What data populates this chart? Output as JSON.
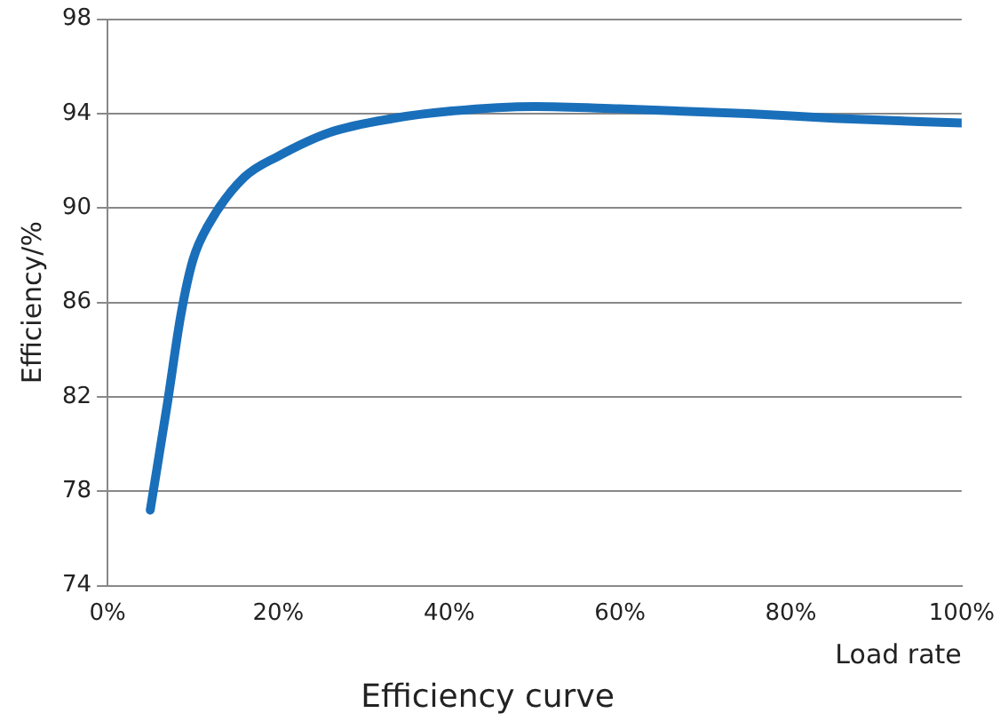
{
  "chart_data": {
    "type": "line",
    "title": "Efficiency curve",
    "xlabel": "Load rate",
    "ylabel": "Efficiency/%",
    "x": [
      5,
      7,
      8.6,
      10,
      12,
      16,
      20,
      26,
      33.5,
      40,
      50,
      60,
      75,
      85,
      100
    ],
    "series": [
      {
        "color": "#1a6fba",
        "values": [
          77.2,
          81.7,
          85.5,
          87.8,
          89.4,
          91.3,
          92.2,
          93.2,
          93.8,
          94.1,
          94.3,
          94.2,
          94.0,
          93.8,
          93.6
        ]
      }
    ],
    "xlim": [
      0,
      100
    ],
    "xticks": [
      {
        "value": 0,
        "label": "0%"
      },
      {
        "value": 20,
        "label": "20%"
      },
      {
        "value": 40,
        "label": "40%"
      },
      {
        "value": 60,
        "label": "60%"
      },
      {
        "value": 80,
        "label": "80%"
      },
      {
        "value": 100,
        "label": "100%"
      }
    ],
    "ylim": [
      74,
      98
    ],
    "yticks": [
      74,
      78,
      82,
      86,
      90,
      94,
      98
    ],
    "grid": "y",
    "legend": false,
    "marker": "none",
    "line_style": "solid"
  }
}
